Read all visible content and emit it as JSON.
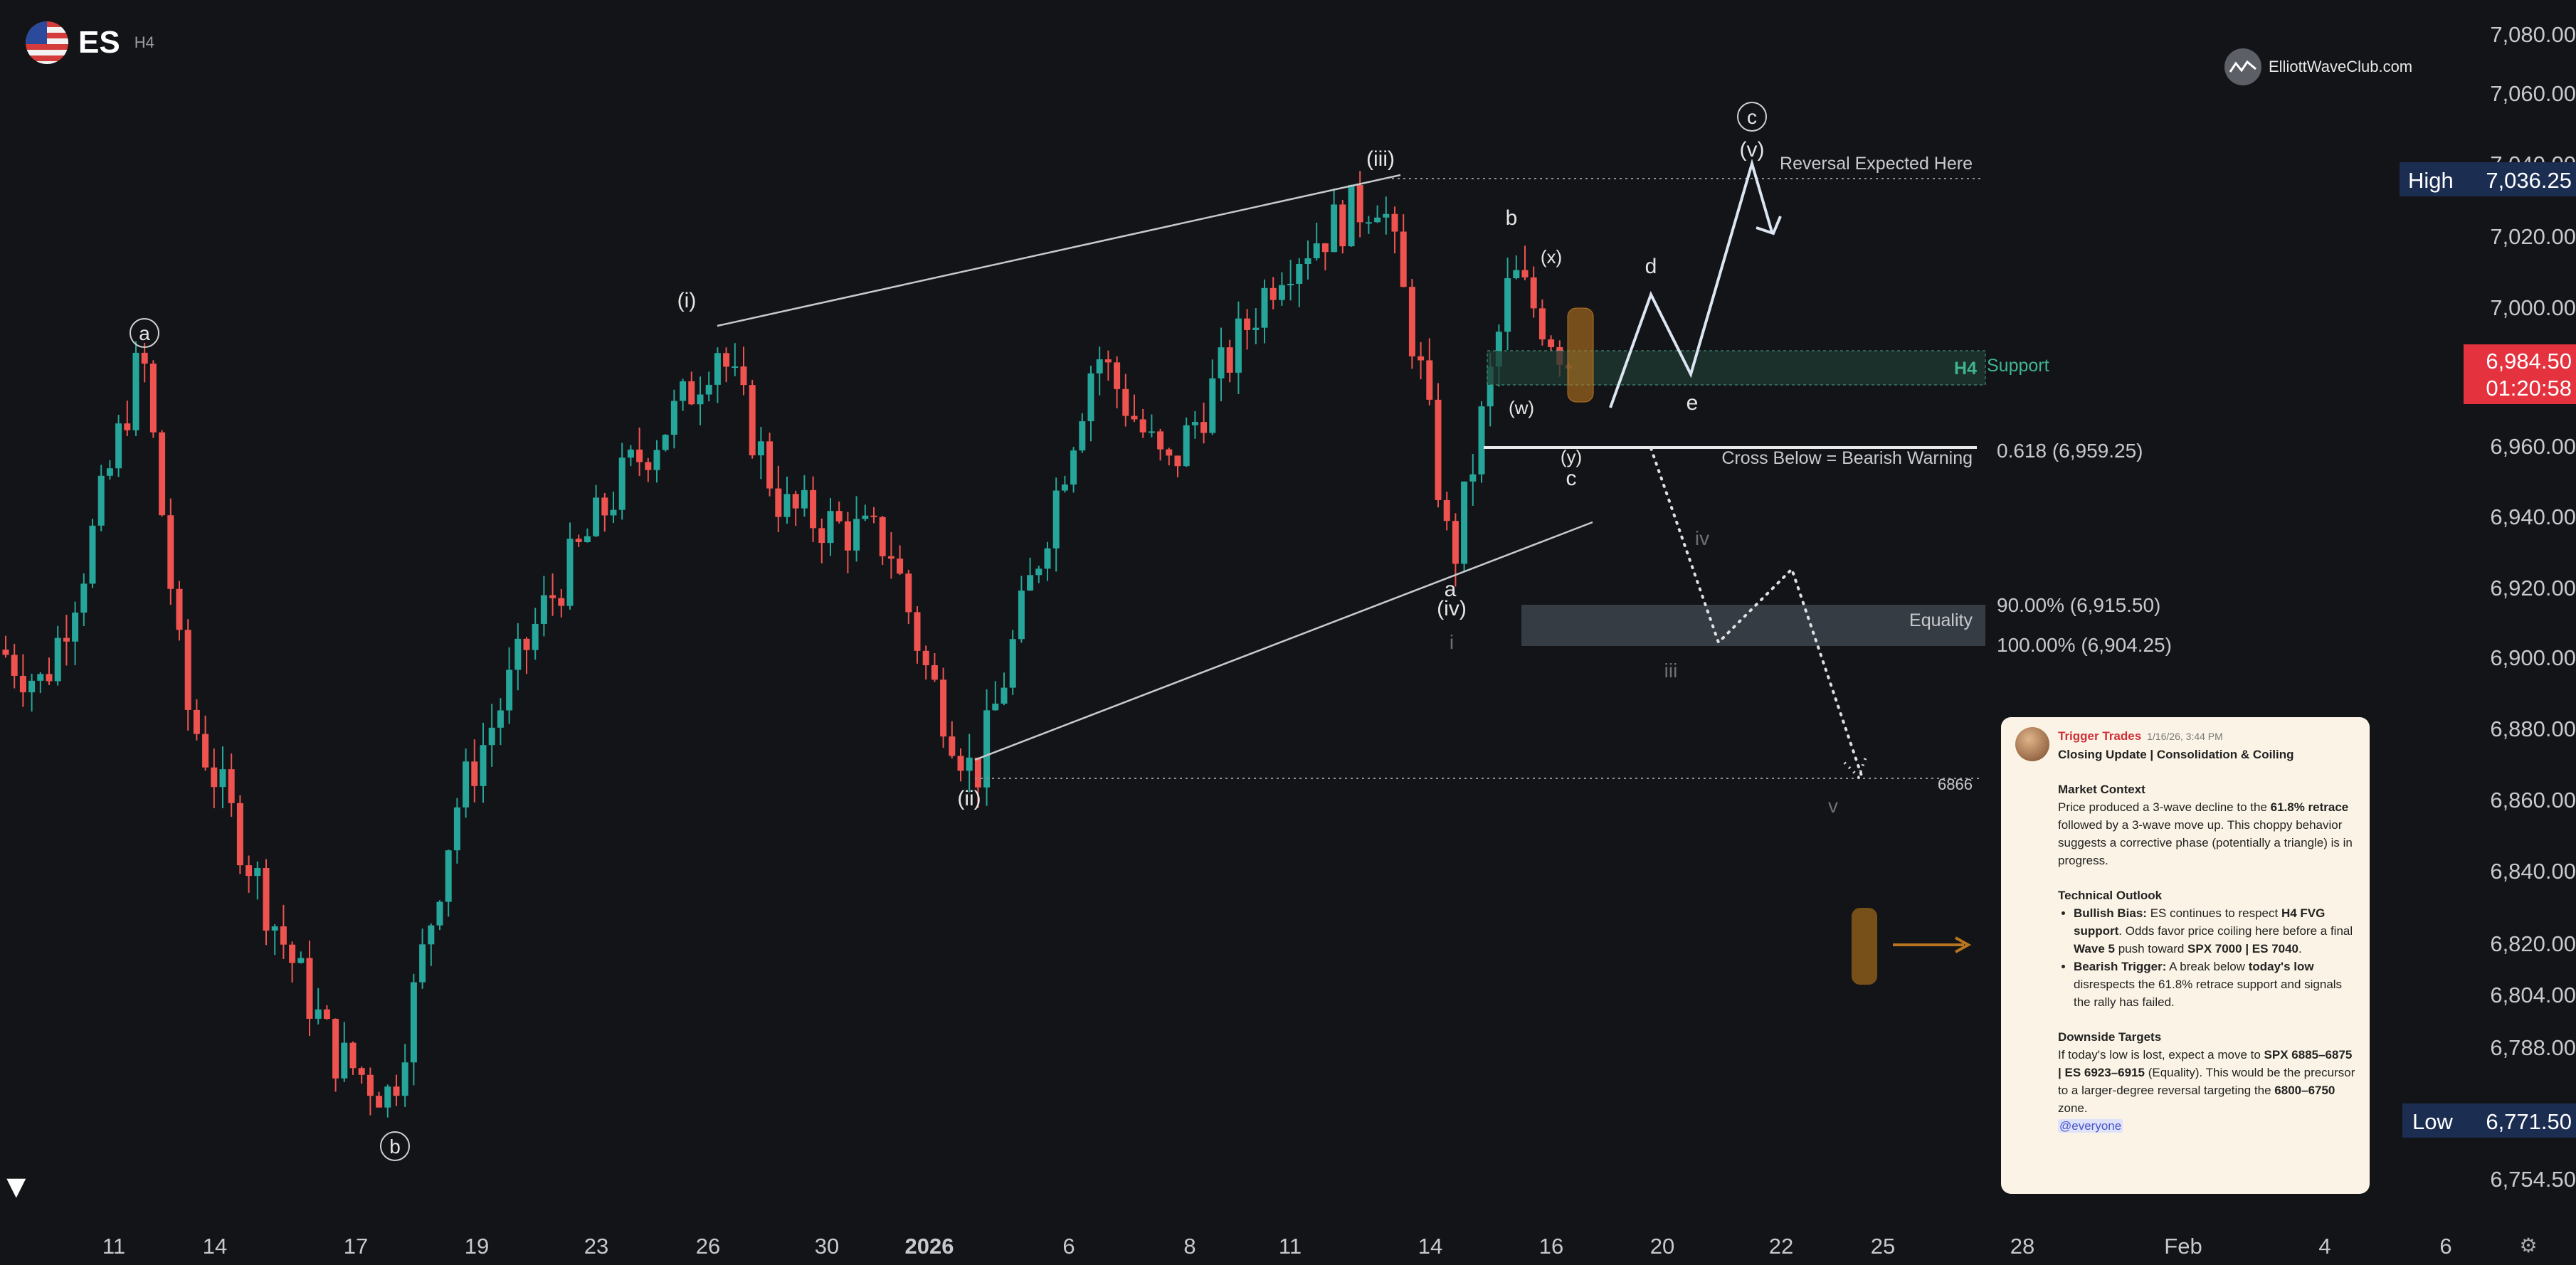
{
  "header": {
    "symbol": "ES",
    "timeframe": "H4"
  },
  "brand": {
    "name": "ElliottWaveClub.com"
  },
  "price_tags": {
    "high_label": "High",
    "high_value": "7,036.25",
    "last_value": "6,984.50",
    "countdown": "01:20:58",
    "low_label": "Low",
    "low_value": "6,771.50"
  },
  "chart_data": {
    "type": "candlestick",
    "symbol": "ES",
    "timeframe": "H4",
    "y_ticks": [
      "7,080.00",
      "7,060.00",
      "7,040.00",
      "7,020.00",
      "7,000.00",
      "6,960.00",
      "6,940.00",
      "6,920.00",
      "6,900.00",
      "6,880.00",
      "6,860.00",
      "6,840.00",
      "6,820.00",
      "6,804.00",
      "6,788.00",
      "6,754.50"
    ],
    "x_ticks": [
      "11",
      "14",
      "17",
      "19",
      "23",
      "26",
      "30",
      "2026",
      "6",
      "8",
      "11",
      "14",
      "16",
      "20",
      "22",
      "25",
      "28",
      "Feb",
      "4",
      "6"
    ],
    "ylim": [
      6746,
      7086
    ],
    "high": 7036.25,
    "low": 6771.5,
    "last": 6984.5,
    "levels": [
      {
        "label": "Reversal Expected Here",
        "value": 7036.25
      },
      {
        "label": "0.618 (6,959.25)",
        "value": 6959.25
      },
      {
        "label": "Cross Below = Bearish Warning",
        "value": 6959.25
      },
      {
        "label": "90.00% (6,915.50)",
        "value": 6915.5
      },
      {
        "label": "100.00% (6,904.25)",
        "value": 6904.25
      },
      {
        "label": "6866",
        "value": 6866
      }
    ],
    "zones": [
      {
        "label": "H4",
        "label2": "Support",
        "from": 6975,
        "to": 6984
      },
      {
        "label": "Equality",
        "from": 6904.25,
        "to": 6915.5
      }
    ],
    "wave_labels": [
      "a",
      "b",
      "(i)",
      "(ii)",
      "(iii)",
      "(iv)",
      "b",
      "a",
      "c",
      "(x)",
      "(w)",
      "(y)",
      "c",
      "d",
      "e",
      "(v)",
      "iv",
      "iii",
      "i",
      "v"
    ]
  },
  "note": {
    "author": "Trigger Trades",
    "timestamp": "1/16/26, 3:44 PM",
    "title": "Closing Update | Consolidation & Coiling",
    "s1_title": "Market Context",
    "s1_a": "Price produced a 3-wave decline to the ",
    "s1_b": "61.8% retrace",
    "s1_c": " followed by a 3-wave move up. This choppy behavior suggests a corrective phase (potentially a triangle) is in progress.",
    "s2_title": "Technical Outlook",
    "b1_a": "Bullish Bias:",
    "b1_b": " ES continues to respect ",
    "b1_c": "H4 FVG support",
    "b1_d": ". Odds favor price coiling here before a final ",
    "b1_e": "Wave 5",
    "b1_f": " push toward ",
    "b1_g": "SPX 7000 | ES 7040",
    "b2_a": "Bearish Trigger:",
    "b2_b": " A break below ",
    "b2_c": "today's low",
    "b2_d": " disrespects the 61.8% retrace support and signals the rally has failed.",
    "s3_title": "Downside Targets",
    "s3_a": "If today's low is lost, expect a move to ",
    "s3_b": "SPX 6885–6875 | ES 6923–6915",
    "s3_c": " (Equality). This would be the precursor to a larger-degree reversal targeting the ",
    "s3_d": "6800–6750",
    "s3_e": " zone.",
    "mention": "@everyone"
  },
  "colors": {
    "up": "#26a69a",
    "down": "#ef5350",
    "bg": "#131417",
    "projection": "#dce6f2",
    "zone": "#2e3440",
    "support": "#1f3a32",
    "highlight": "#b8741f"
  }
}
